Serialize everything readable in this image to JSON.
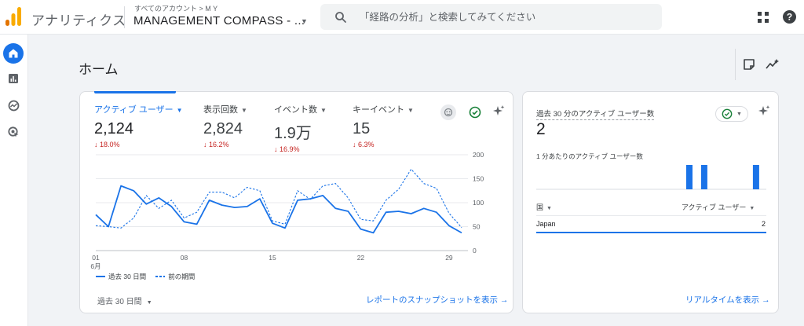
{
  "header": {
    "app_title": "アナリティクス",
    "account_breadcrumb": "すべてのアカウント > M Y",
    "account_name": "MANAGEMENT COMPASS - ...",
    "search_placeholder": "「経路の分析」と検索してみてください"
  },
  "nav": {
    "items": [
      {
        "name": "home-icon",
        "active": true
      },
      {
        "name": "reports-icon",
        "active": false
      },
      {
        "name": "explore-icon",
        "active": false
      },
      {
        "name": "advertising-icon",
        "active": false
      }
    ]
  },
  "page": {
    "title": "ホーム"
  },
  "main_card": {
    "metrics": [
      {
        "label": "アクティブ ユーザー",
        "value": "2,124",
        "change": "18.0%",
        "active": true
      },
      {
        "label": "表示回数",
        "value": "2,824",
        "change": "16.2%",
        "active": false
      },
      {
        "label": "イベント数",
        "value": "1.9万",
        "change": "16.9%",
        "active": false
      },
      {
        "label": "キーイベント",
        "value": "15",
        "change": "6.3%",
        "active": false
      }
    ],
    "legend": {
      "current": "過去 30 日間",
      "previous": "前の期間"
    },
    "period_select": "過去 30 日間",
    "snapshot_link": "レポートのスナップショットを表示"
  },
  "chart_data": {
    "type": "line",
    "x_tick_labels": [
      "01",
      "08",
      "15",
      "22",
      "29"
    ],
    "x_sublabel": "6月",
    "ylim": [
      0,
      200
    ],
    "y_ticks": [
      0,
      50,
      100,
      150,
      200
    ],
    "series": [
      {
        "name": "過去 30 日間",
        "values": [
          75,
          50,
          135,
          125,
          97,
          110,
          92,
          60,
          55,
          105,
          95,
          90,
          92,
          108,
          57,
          47,
          105,
          108,
          115,
          88,
          82,
          45,
          37,
          80,
          82,
          77,
          88,
          80,
          52,
          37
        ]
      },
      {
        "name": "前の期間",
        "values": [
          52,
          50,
          47,
          68,
          115,
          88,
          105,
          68,
          80,
          122,
          122,
          110,
          132,
          125,
          62,
          55,
          125,
          107,
          135,
          140,
          110,
          65,
          62,
          105,
          128,
          170,
          140,
          130,
          78,
          48
        ]
      }
    ]
  },
  "realtime": {
    "label": "過去 30 分のアクティブ ユーザー数",
    "value": "2",
    "per_minute_label": "1 分あたりのアクティブ ユーザー数",
    "per_minute_values": [
      0,
      0,
      0,
      0,
      0,
      0,
      0,
      0,
      0,
      0,
      0,
      0,
      0,
      0,
      0,
      0,
      0,
      0,
      0,
      0,
      1,
      0,
      1,
      0,
      0,
      0,
      0,
      0,
      0,
      1
    ],
    "col_country": "国",
    "col_users": "アクティブ ユーザー",
    "rows": [
      {
        "country": "Japan",
        "users": "2"
      }
    ],
    "realtime_link": "リアルタイムを表示"
  },
  "colors": {
    "accent": "#1a73e8",
    "negative": "#c5221f",
    "logo_orange": "#f9ab00",
    "logo_dark": "#e37400",
    "check_green": "#188038"
  }
}
